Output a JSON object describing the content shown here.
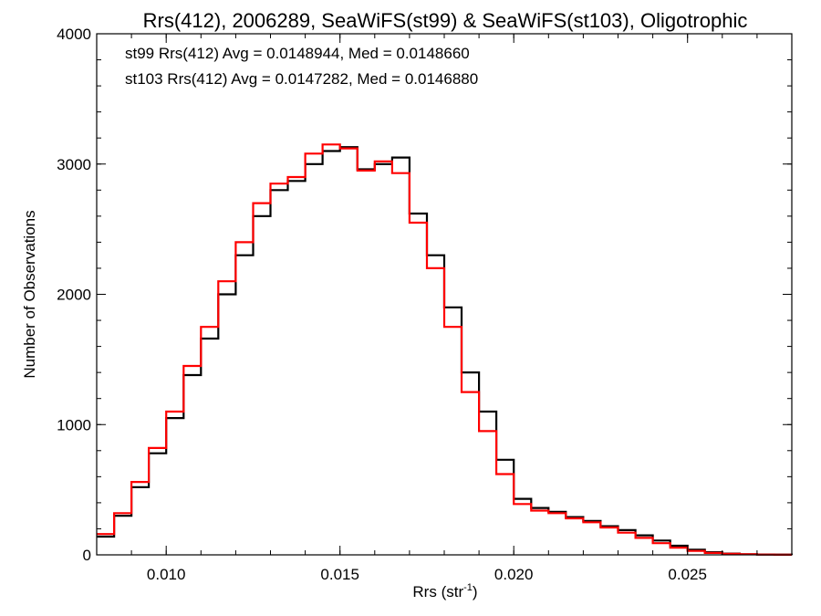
{
  "chart_data": {
    "type": "line",
    "title": "Rrs(412), 2006289, SeaWiFS(st99) & SeaWiFS(st103), Oligotrophic",
    "xlabel_main": "Rrs (str",
    "xlabel_sup": "-1",
    "xlabel_close": ")",
    "ylabel": "Number of Observations",
    "xlim": [
      0.008,
      0.028
    ],
    "ylim": [
      0,
      4000
    ],
    "xticks": [
      {
        "value": 0.01,
        "label": "0.010"
      },
      {
        "value": 0.015,
        "label": "0.015"
      },
      {
        "value": 0.02,
        "label": "0.020"
      },
      {
        "value": 0.025,
        "label": "0.025"
      }
    ],
    "yticks": [
      {
        "value": 0,
        "label": "0"
      },
      {
        "value": 1000,
        "label": "1000"
      },
      {
        "value": 2000,
        "label": "2000"
      },
      {
        "value": 3000,
        "label": "3000"
      },
      {
        "value": 4000,
        "label": "4000"
      }
    ],
    "grid": false,
    "legend_position": "top-left",
    "series": [
      {
        "name": "st99",
        "annotation": "st99 Rrs(412) Avg = 0.0148944, Med = 0.0148660",
        "color": "#000000",
        "x": [
          0.008,
          0.0085,
          0.009,
          0.0095,
          0.01,
          0.0105,
          0.011,
          0.0115,
          0.012,
          0.0125,
          0.013,
          0.0135,
          0.014,
          0.0145,
          0.015,
          0.0155,
          0.016,
          0.0165,
          0.017,
          0.0175,
          0.018,
          0.0185,
          0.019,
          0.0195,
          0.02,
          0.0205,
          0.021,
          0.0215,
          0.022,
          0.0225,
          0.023,
          0.0235,
          0.024,
          0.0245,
          0.025,
          0.0255,
          0.026,
          0.0265,
          0.027,
          0.0275,
          0.028
        ],
        "y": [
          140,
          300,
          520,
          780,
          1050,
          1380,
          1660,
          2000,
          2300,
          2600,
          2800,
          2870,
          3000,
          3100,
          3130,
          2960,
          3000,
          3050,
          2620,
          2300,
          1900,
          1400,
          1100,
          730,
          430,
          360,
          330,
          290,
          260,
          220,
          190,
          150,
          110,
          70,
          40,
          20,
          10,
          5,
          3,
          2,
          1
        ]
      },
      {
        "name": "st103",
        "annotation": "st103 Rrs(412) Avg = 0.0147282, Med = 0.0146880",
        "color": "#ff0000",
        "x": [
          0.008,
          0.0085,
          0.009,
          0.0095,
          0.01,
          0.0105,
          0.011,
          0.0115,
          0.012,
          0.0125,
          0.013,
          0.0135,
          0.014,
          0.0145,
          0.015,
          0.0155,
          0.016,
          0.0165,
          0.017,
          0.0175,
          0.018,
          0.0185,
          0.019,
          0.0195,
          0.02,
          0.0205,
          0.021,
          0.0215,
          0.022,
          0.0225,
          0.023,
          0.0235,
          0.024,
          0.0245,
          0.025,
          0.0255,
          0.026,
          0.0265,
          0.027,
          0.0275,
          0.028
        ],
        "y": [
          160,
          320,
          560,
          820,
          1100,
          1450,
          1750,
          2100,
          2400,
          2700,
          2850,
          2900,
          3080,
          3150,
          3120,
          2950,
          3020,
          2930,
          2550,
          2200,
          1750,
          1250,
          950,
          620,
          390,
          340,
          320,
          280,
          250,
          210,
          170,
          130,
          90,
          55,
          30,
          15,
          8,
          4,
          2,
          1,
          1
        ]
      }
    ]
  }
}
